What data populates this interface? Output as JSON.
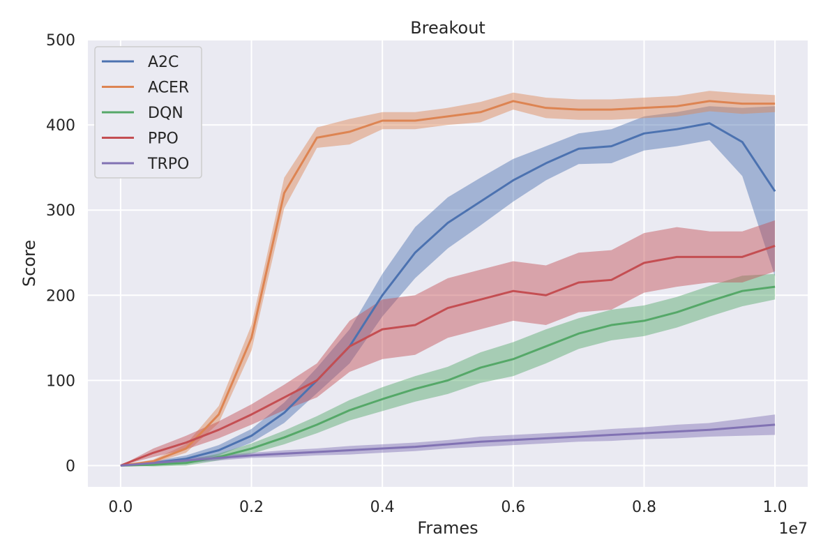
{
  "chart_data": {
    "type": "line",
    "title": "Breakout",
    "xlabel": "Frames",
    "ylabel": "Score",
    "x_offset_label": "1e7",
    "xlim": [
      -0.05,
      1.05
    ],
    "ylim": [
      -25,
      500
    ],
    "xticks": [
      0.0,
      0.2,
      0.4,
      0.6,
      0.8,
      1.0
    ],
    "xtick_labels": [
      "0.0",
      "0.2",
      "0.4",
      "0.6",
      "0.8",
      "1.0"
    ],
    "yticks": [
      0,
      100,
      200,
      300,
      400,
      500
    ],
    "ytick_labels": [
      "0",
      "100",
      "200",
      "300",
      "400",
      "500"
    ],
    "legend_position": "top-left",
    "grid": true,
    "x": [
      0.0,
      0.05,
      0.1,
      0.15,
      0.2,
      0.25,
      0.3,
      0.35,
      0.4,
      0.45,
      0.5,
      0.55,
      0.6,
      0.65,
      0.7,
      0.75,
      0.8,
      0.85,
      0.9,
      0.95,
      1.0
    ],
    "series": [
      {
        "name": "A2C",
        "color": "#4c72b0",
        "values": [
          0,
          3,
          8,
          18,
          35,
          62,
          100,
          140,
          200,
          250,
          285,
          310,
          335,
          355,
          372,
          375,
          390,
          395,
          402,
          380,
          322
        ],
        "band": [
          0,
          2,
          4,
          6,
          8,
          12,
          15,
          20,
          25,
          30,
          30,
          28,
          25,
          20,
          18,
          20,
          20,
          20,
          20,
          40,
          100
        ]
      },
      {
        "name": "ACER",
        "color": "#dd8452",
        "values": [
          0,
          5,
          20,
          60,
          150,
          320,
          385,
          392,
          405,
          405,
          410,
          415,
          428,
          420,
          418,
          418,
          420,
          422,
          428,
          425,
          425
        ],
        "band": [
          0,
          2,
          5,
          10,
          15,
          18,
          12,
          15,
          10,
          10,
          10,
          12,
          10,
          12,
          12,
          12,
          12,
          12,
          12,
          12,
          10
        ]
      },
      {
        "name": "DQN",
        "color": "#55a868",
        "values": [
          0,
          1,
          3,
          10,
          20,
          33,
          48,
          65,
          78,
          90,
          100,
          115,
          125,
          140,
          155,
          165,
          170,
          180,
          193,
          205,
          210
        ],
        "band": [
          0,
          2,
          3,
          4,
          6,
          8,
          10,
          12,
          14,
          15,
          16,
          18,
          20,
          20,
          18,
          18,
          18,
          18,
          18,
          18,
          15
        ]
      },
      {
        "name": "PPO",
        "color": "#c44e52",
        "values": [
          0,
          15,
          27,
          42,
          60,
          80,
          100,
          140,
          160,
          165,
          185,
          195,
          205,
          200,
          215,
          218,
          238,
          245,
          245,
          245,
          258
        ],
        "band": [
          0,
          5,
          8,
          10,
          12,
          15,
          20,
          30,
          35,
          35,
          35,
          35,
          35,
          35,
          35,
          35,
          35,
          35,
          30,
          30,
          30
        ]
      },
      {
        "name": "TRPO",
        "color": "#8172b3",
        "values": [
          0,
          3,
          6,
          9,
          12,
          14,
          16,
          18,
          20,
          22,
          25,
          28,
          30,
          32,
          34,
          36,
          38,
          40,
          42,
          45,
          48
        ],
        "band": [
          0,
          2,
          3,
          3,
          3,
          4,
          4,
          5,
          5,
          5,
          5,
          6,
          6,
          6,
          6,
          7,
          7,
          8,
          8,
          10,
          12
        ]
      }
    ]
  }
}
